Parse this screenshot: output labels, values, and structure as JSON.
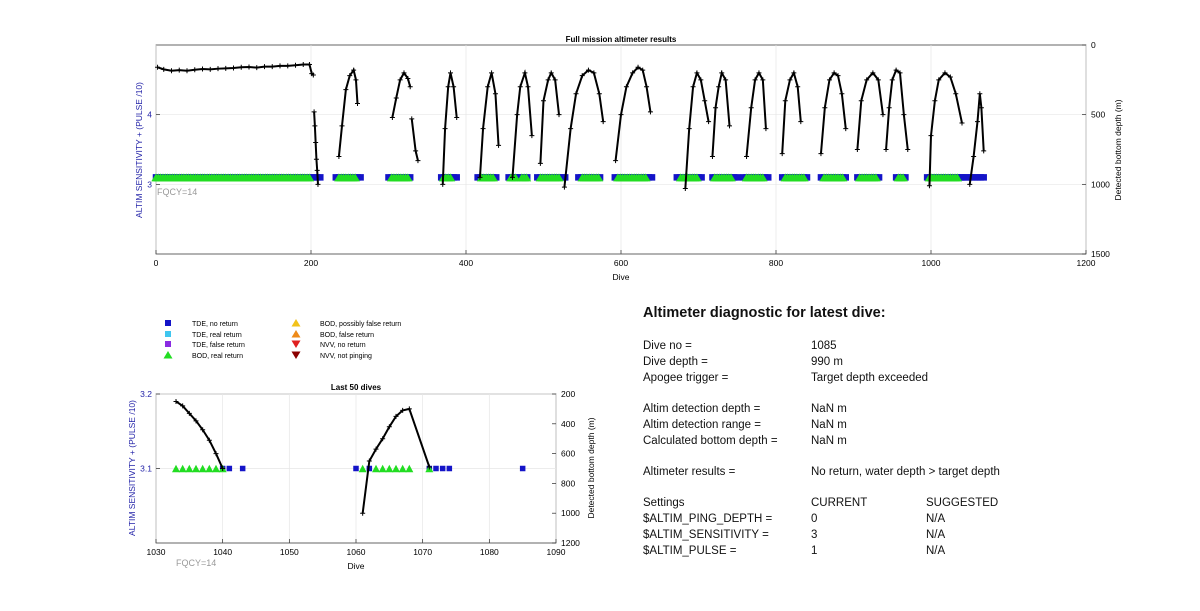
{
  "colors": {
    "tde_no_return": "#1414c8",
    "tde_real_return": "#3fc6ef",
    "tde_false_return": "#8a2be2",
    "bod_real_return": "#22dd22",
    "bod_possibly_false": "#f2c21a",
    "bod_false": "#ee8a18",
    "nvv_no_return": "#e02020",
    "nvv_not_pinging": "#8b0000",
    "axis_left": "#2323a8",
    "fqcy_text": "#999999"
  },
  "legend": {
    "items": [
      {
        "label": "TDE, no return",
        "marker": "square",
        "color": "#1414c8"
      },
      {
        "label": "TDE, real return",
        "marker": "square",
        "color": "#3fc6ef"
      },
      {
        "label": "TDE, false return",
        "marker": "square",
        "color": "#8a2be2"
      },
      {
        "label": "BOD, real return",
        "marker": "triangle-up",
        "color": "#22dd22"
      },
      {
        "label": "BOD, possibly false return",
        "marker": "triangle-up",
        "color": "#f2c21a"
      },
      {
        "label": "BOD, false return",
        "marker": "triangle-up",
        "color": "#ee8a18"
      },
      {
        "label": "NVV, no return",
        "marker": "triangle-down",
        "color": "#e02020"
      },
      {
        "label": "NVV, not pinging",
        "marker": "triangle-down",
        "color": "#8b0000"
      }
    ]
  },
  "chart_data": [
    {
      "type": "scatter",
      "title": "Full mission altimeter results",
      "xlabel": "Dive",
      "ylabel": "ALTIM SENSITIVITY + (PULSE /10)",
      "y2label": "Detected bottom depth (m)",
      "annotation": "FQCY=14",
      "xlim": [
        0,
        1200
      ],
      "ylim": [
        2,
        5
      ],
      "y2lim": [
        1500,
        0
      ],
      "xticks": [
        "0",
        "200",
        "400",
        "600",
        "800",
        "1000",
        "1200"
      ],
      "yticks": [
        "3",
        "4"
      ],
      "y2ticks": [
        "0",
        "500",
        "1000",
        "1500"
      ],
      "grid": true,
      "series": [
        {
          "marker": "square",
          "color": "#1414c8",
          "y": 3.1,
          "x_ranges": [
            [
              0,
              215
            ],
            [
              232,
              265
            ],
            [
              300,
              330
            ],
            [
              368,
              388
            ],
            [
              415,
              440
            ],
            [
              455,
              482
            ],
            [
              492,
              528
            ],
            [
              545,
              575
            ],
            [
              592,
              640
            ],
            [
              672,
              705
            ],
            [
              718,
              750
            ],
            [
              758,
              790
            ],
            [
              808,
              843
            ],
            [
              858,
              893
            ],
            [
              905,
              935
            ],
            [
              955,
              970
            ],
            [
              995,
              1040
            ],
            [
              1040,
              1070
            ]
          ]
        },
        {
          "marker": "triangle-up",
          "color": "#22dd22",
          "y": 3.1,
          "x_ranges": [
            [
              0,
              200
            ],
            [
              236,
              258
            ],
            [
              304,
              326
            ],
            [
              371,
              380
            ],
            [
              420,
              437
            ],
            [
              458,
              465
            ],
            [
              472,
              478
            ],
            [
              496,
              522
            ],
            [
              550,
              572
            ],
            [
              596,
              633
            ],
            [
              677,
              698
            ],
            [
              721,
              744
            ],
            [
              762,
              785
            ],
            [
              812,
              837
            ],
            [
              862,
              886
            ],
            [
              908,
              930
            ],
            [
              958,
              965
            ],
            [
              998,
              1035
            ]
          ]
        },
        {
          "marker": "plus-line",
          "color": "#000000",
          "axis": "y2",
          "segments": [
            {
              "x": [
                2,
                10,
                20,
                30,
                40,
                50,
                60,
                70,
                80,
                90,
                100,
                110,
                120,
                130,
                140,
                150,
                160,
                170,
                180,
                190,
                198,
                201,
                203
              ],
              "y": [
                160,
                175,
                185,
                180,
                185,
                178,
                172,
                175,
                170,
                168,
                165,
                160,
                158,
                162,
                155,
                155,
                150,
                150,
                145,
                140,
                140,
                205,
                215
              ]
            },
            {
              "x": [
                204,
                205,
                206,
                207,
                208,
                209
              ],
              "y": [
                480,
                580,
                700,
                820,
                900,
                1000
              ]
            },
            {
              "x": [
                236,
                240,
                245,
                250,
                255,
                258,
                260
              ],
              "y": [
                800,
                580,
                320,
                220,
                180,
                250,
                420
              ]
            },
            {
              "x": [
                305,
                310,
                315,
                320,
                325,
                328
              ],
              "y": [
                520,
                380,
                250,
                200,
                240,
                300
              ]
            },
            {
              "x": [
                330,
                335,
                338
              ],
              "y": [
                530,
                760,
                830
              ]
            },
            {
              "x": [
                370,
                373,
                377,
                380,
                384,
                388
              ],
              "y": [
                1000,
                600,
                300,
                200,
                300,
                520
              ]
            },
            {
              "x": [
                418,
                422,
                428,
                433,
                438,
                442
              ],
              "y": [
                950,
                600,
                300,
                200,
                350,
                720
              ]
            },
            {
              "x": [
                460,
                466,
                470,
                476,
                480,
                485
              ],
              "y": [
                950,
                500,
                300,
                200,
                300,
                650
              ]
            },
            {
              "x": [
                496,
                500,
                506,
                510,
                515,
                520
              ],
              "y": [
                850,
                400,
                250,
                200,
                250,
                500
              ]
            },
            {
              "x": [
                527,
                535,
                542,
                550,
                558,
                565,
                572,
                577
              ],
              "y": [
                1020,
                600,
                350,
                220,
                180,
                200,
                350,
                550
              ]
            },
            {
              "x": [
                593,
                600,
                607,
                615,
                622,
                628,
                633,
                638
              ],
              "y": [
                830,
                500,
                300,
                200,
                160,
                180,
                300,
                480
              ]
            },
            {
              "x": [
                683,
                688,
                693,
                698,
                703,
                708,
                713
              ],
              "y": [
                1030,
                600,
                300,
                200,
                250,
                400,
                550
              ]
            },
            {
              "x": [
                718,
                722,
                726,
                730,
                735,
                740
              ],
              "y": [
                800,
                450,
                300,
                200,
                250,
                580
              ]
            },
            {
              "x": [
                762,
                768,
                773,
                778,
                783,
                787
              ],
              "y": [
                800,
                450,
                250,
                200,
                250,
                600
              ]
            },
            {
              "x": [
                808,
                812,
                818,
                823,
                828,
                832
              ],
              "y": [
                780,
                400,
                250,
                200,
                300,
                550
              ]
            },
            {
              "x": [
                858,
                863,
                869,
                875,
                880,
                885,
                890
              ],
              "y": [
                780,
                450,
                250,
                200,
                220,
                350,
                600
              ]
            },
            {
              "x": [
                905,
                910,
                917,
                925,
                932,
                938
              ],
              "y": [
                750,
                400,
                250,
                200,
                250,
                500
              ]
            },
            {
              "x": [
                942,
                946,
                950,
                955,
                960,
                965,
                970
              ],
              "y": [
                750,
                450,
                250,
                180,
                200,
                500,
                750
              ]
            },
            {
              "x": [
                998,
                1000,
                1005,
                1010,
                1018,
                1025,
                1032,
                1040
              ],
              "y": [
                1010,
                650,
                400,
                250,
                200,
                230,
                350,
                560
              ]
            },
            {
              "x": [
                1050,
                1055,
                1060,
                1063,
                1065,
                1068
              ],
              "y": [
                1000,
                800,
                550,
                350,
                450,
                760
              ]
            }
          ]
        }
      ]
    },
    {
      "type": "scatter",
      "title": "Last 50 dives",
      "xlabel": "Dive",
      "ylabel": "ALTIM SENSITIVITY + (PULSE /10)",
      "y2label": "Detected bottom depth (m)",
      "annotation": "FQCY=14",
      "xlim": [
        1030,
        1090
      ],
      "ylim": [
        3.0,
        3.2
      ],
      "y2lim": [
        1200,
        200
      ],
      "xticks": [
        "1030",
        "1040",
        "1050",
        "1060",
        "1070",
        "1080",
        "1090"
      ],
      "yticks": [
        "3.1",
        "3.2"
      ],
      "y2ticks": [
        "200",
        "400",
        "600",
        "800",
        "1000",
        "1200"
      ],
      "grid": true,
      "series": [
        {
          "marker": "square",
          "color": "#1414c8",
          "y": 3.1,
          "x": [
            1040,
            1041,
            1043,
            1060,
            1062,
            1071,
            1072,
            1073,
            1074,
            1085
          ]
        },
        {
          "marker": "triangle-up",
          "color": "#22dd22",
          "y": 3.1,
          "x": [
            1033,
            1034,
            1035,
            1036,
            1037,
            1038,
            1039,
            1040,
            1061,
            1063,
            1064,
            1065,
            1066,
            1067,
            1068,
            1071
          ]
        },
        {
          "marker": "plus-line",
          "color": "#000000",
          "axis": "y2",
          "segments": [
            {
              "x": [
                1033,
                1034,
                1035,
                1036,
                1037,
                1038,
                1039,
                1040
              ],
              "y": [
                250,
                280,
                330,
                380,
                440,
                510,
                600,
                700
              ]
            },
            {
              "x": [
                1061,
                1062,
                1063,
                1064,
                1065,
                1066,
                1067,
                1068,
                1071
              ],
              "y": [
                1000,
                650,
                570,
                500,
                420,
                350,
                310,
                300,
                690
              ]
            }
          ]
        }
      ]
    }
  ],
  "diagnostic": {
    "title": "Altimeter diagnostic for latest dive:",
    "dive_no_label": "Dive no =",
    "dive_no": "1085",
    "dive_depth_label": "Dive depth =",
    "dive_depth": "990 m",
    "apogee_label": "Apogee trigger =",
    "apogee": "Target depth exceeded",
    "det_depth_label": "Altim detection depth =",
    "det_depth": "NaN m",
    "det_range_label": "Altim detection range =",
    "det_range": "NaN m",
    "calc_depth_label": "Calculated bottom depth =",
    "calc_depth": "NaN m",
    "results_label": "Altimeter results =",
    "results": "No return, water depth > target depth",
    "settings_label": "Settings",
    "current_label": "CURRENT",
    "suggested_label": "SUGGESTED",
    "rows": [
      {
        "name": "$ALTIM_PING_DEPTH =",
        "current": "0",
        "suggested": "N/A"
      },
      {
        "name": "$ALTIM_SENSITIVITY =",
        "current": "3",
        "suggested": "N/A"
      },
      {
        "name": "$ALTIM_PULSE =",
        "current": "1",
        "suggested": "N/A"
      }
    ]
  }
}
